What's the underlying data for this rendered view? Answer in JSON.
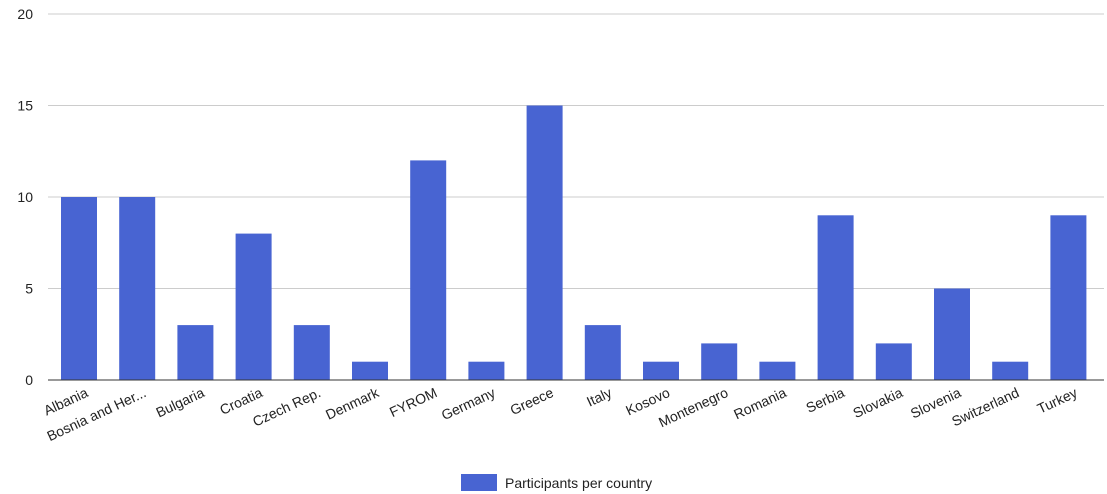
{
  "chart_data": {
    "type": "bar",
    "categories": [
      "Albania",
      "Bosnia and Her...",
      "Bulgaria",
      "Croatia",
      "Czech Rep.",
      "Denmark",
      "FYROM",
      "Germany",
      "Greece",
      "Italy",
      "Kosovo",
      "Montenegro",
      "Romania",
      "Serbia",
      "Slovakia",
      "Slovenia",
      "Switzerland",
      "Turkey"
    ],
    "series": [
      {
        "name": "Participants per country",
        "values": [
          10,
          10,
          3,
          8,
          3,
          1,
          12,
          1,
          15,
          3,
          1,
          2,
          1,
          9,
          2,
          5,
          1,
          9
        ]
      }
    ],
    "yticks": [
      0,
      5,
      10,
      15,
      20
    ],
    "ylim": [
      0,
      20
    ],
    "grid": true,
    "legend_position": "bottom",
    "colors": {
      "bar": "#4864d2",
      "grid": "#cccccc",
      "baseline": "#333333"
    }
  }
}
